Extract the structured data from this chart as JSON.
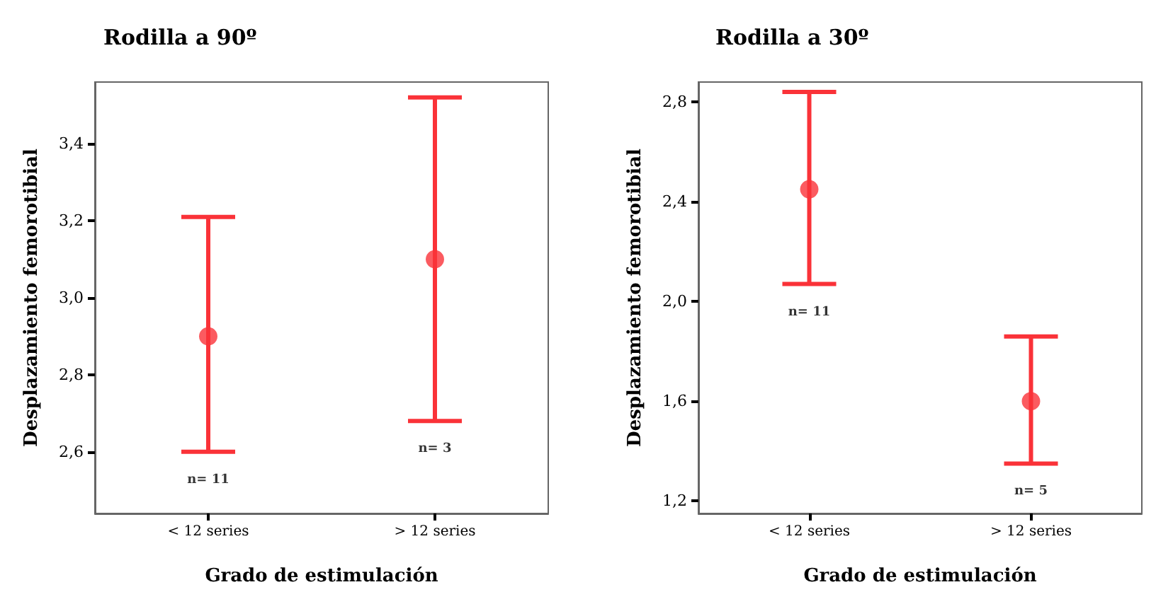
{
  "chart_data": [
    {
      "type": "scatter",
      "title": "Rodilla a 90º",
      "xlabel": "Grado de estimulación",
      "ylabel": "Desplazamiento femorotibial",
      "categories": [
        "< 12 series",
        "> 12 series"
      ],
      "series": [
        {
          "color": "#fa3238",
          "values": [
            2.9,
            3.1
          ],
          "errors": [
            [
              2.6,
              3.21
            ],
            [
              2.68,
              3.52
            ]
          ]
        }
      ],
      "marker": "circle",
      "ylim": [
        2.44,
        3.56
      ],
      "yticks": [
        {
          "value": 2.6,
          "label": "2,6"
        },
        {
          "value": 2.8,
          "label": "2,8"
        },
        {
          "value": 3.0,
          "label": "3,0"
        },
        {
          "value": 3.2,
          "label": "3,2"
        },
        {
          "value": 3.4,
          "label": "3,4"
        }
      ],
      "grid": false,
      "annotations": [
        "n= 11",
        "n= 3"
      ]
    },
    {
      "type": "scatter",
      "title": "Rodilla a 30º",
      "xlabel": "Grado de estimulación",
      "ylabel": "Desplazamiento femorotibial",
      "categories": [
        "< 12 series",
        "> 12 series"
      ],
      "series": [
        {
          "color": "#fa3238",
          "values": [
            2.45,
            1.6
          ],
          "errors": [
            [
              2.07,
              2.84
            ],
            [
              1.35,
              1.86
            ]
          ]
        }
      ],
      "marker": "circle",
      "ylim": [
        1.15,
        2.88
      ],
      "yticks": [
        {
          "value": 1.2,
          "label": "1,2"
        },
        {
          "value": 1.6,
          "label": "1,6"
        },
        {
          "value": 2.0,
          "label": "2,0"
        },
        {
          "value": 2.4,
          "label": "2,4"
        },
        {
          "value": 2.8,
          "label": "2,8"
        }
      ],
      "grid": false,
      "annotations": [
        "n= 11",
        "n= 5"
      ]
    }
  ]
}
